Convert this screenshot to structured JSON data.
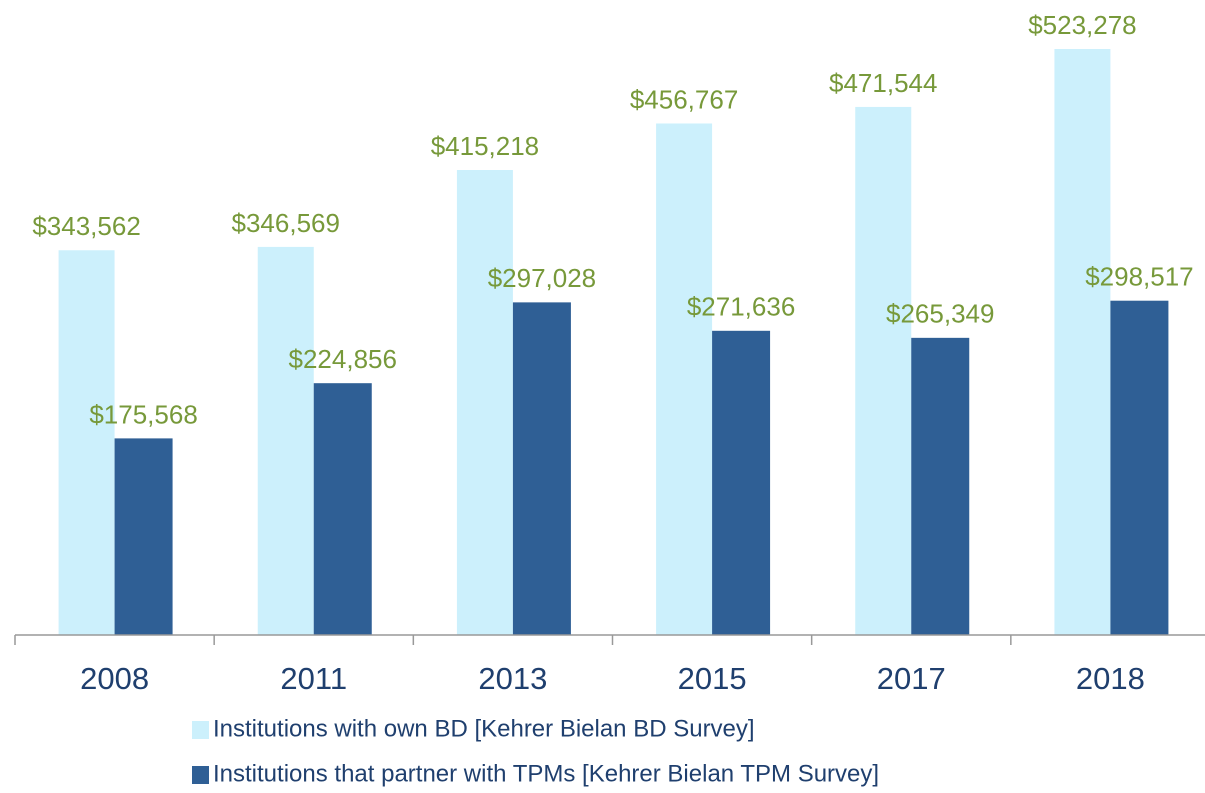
{
  "chart_data": {
    "type": "bar",
    "categories": [
      "2008",
      "2011",
      "2013",
      "2015",
      "2017",
      "2018"
    ],
    "series": [
      {
        "name": "Institutions with own BD [Kehrer Bielan BD Survey]",
        "color": "#ccf0fc",
        "values": [
          343562,
          346569,
          415218,
          456767,
          471544,
          523278
        ],
        "value_labels": [
          "$343,562",
          "$346,569",
          "$415,218",
          "$456,767",
          "$471,544",
          "$523,278"
        ]
      },
      {
        "name": "Institutions that partner with TPMs [Kehrer Bielan TPM Survey]",
        "color": "#2f5f95",
        "values": [
          175568,
          224856,
          297028,
          271636,
          265349,
          298517
        ],
        "value_labels": [
          "$175,568",
          "$224,856",
          "$297,028",
          "$271,636",
          "$265,349",
          "$298,517"
        ]
      }
    ],
    "label_color": "#77993a"
  }
}
